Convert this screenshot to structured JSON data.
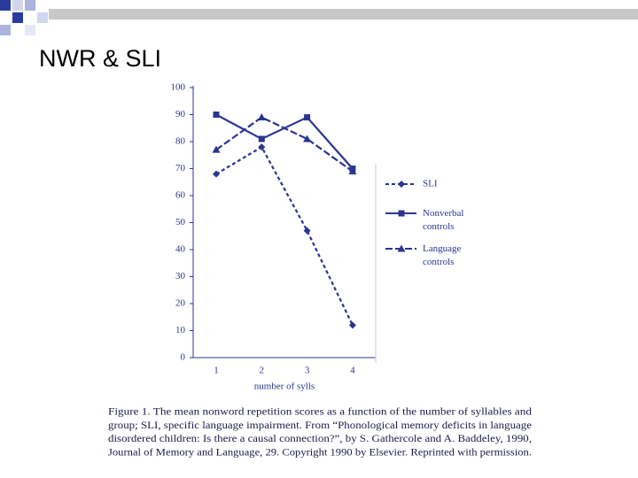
{
  "slide_title": "NWR & SLI",
  "chart_data": {
    "type": "line",
    "x_label": "number of sylls",
    "categories": [
      "1",
      "2",
      "3",
      "4"
    ],
    "series": [
      {
        "name": "SLI",
        "color": "#2a3590",
        "marker": "diamond",
        "dash": "4 3",
        "values": [
          68,
          78,
          47,
          12
        ]
      },
      {
        "name": "Nonverbal controls",
        "color": "#2a3590",
        "marker": "square",
        "dash": "none",
        "values": [
          90,
          81,
          89,
          70
        ]
      },
      {
        "name": "Language controls",
        "color": "#2a3590",
        "marker": "triangle",
        "dash": "8 3",
        "values": [
          77,
          89,
          81,
          69
        ]
      }
    ],
    "ylim": [
      0,
      100
    ],
    "yticks": [
      0,
      10,
      20,
      30,
      40,
      50,
      60,
      70,
      80,
      90,
      100
    ],
    "caption": [
      "Figure 1.  The mean nonword repetition scores as a function of the number of syllables and",
      "group; SLI, specific language impairment. From “Phonological memory deficits in language",
      "disordered children: Is there a causal connection?”, by S. Gathercole and A. Baddeley, 1990,",
      "Journal of Memory and Language, 29. Copyright 1990 by Elsevier. Reprinted with permission."
    ]
  }
}
